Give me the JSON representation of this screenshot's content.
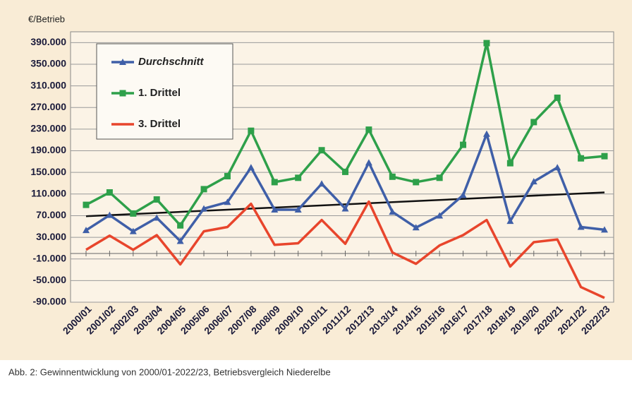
{
  "chart_data": {
    "type": "line",
    "y_label": "€/Betrieb",
    "caption": "Abb. 2: Gewinnentwicklung von 2000/01-2022/23, Betriebsvergleich Niederelbe",
    "categories": [
      "2000/01",
      "2001/02",
      "2002/03",
      "2003/04",
      "2004/05",
      "2005/06",
      "2006/07",
      "2007/08",
      "2008/09",
      "2009/10",
      "2010/11",
      "2011/12",
      "2012/13",
      "2013/14",
      "2014/15",
      "2015/16",
      "2016/17",
      "2017/18",
      "2018/19",
      "2019/20",
      "2020/21",
      "2021/22",
      "2022/23"
    ],
    "series": [
      {
        "name": "Durchschnitt",
        "color": "#3f5fa8",
        "marker": "triangle",
        "values": [
          43000,
          71000,
          41000,
          66000,
          23000,
          83000,
          95000,
          159000,
          81000,
          81000,
          129000,
          83000,
          168000,
          77000,
          48000,
          70000,
          108000,
          221000,
          60000,
          133000,
          159000,
          49000,
          44000
        ]
      },
      {
        "name": "1. Drittel",
        "color": "#2ea04a",
        "marker": "square",
        "values": [
          90000,
          113000,
          74000,
          100000,
          52000,
          119000,
          143000,
          227000,
          132000,
          140000,
          191000,
          151000,
          229000,
          142000,
          132000,
          140000,
          201000,
          389000,
          167000,
          243000,
          288000,
          176000,
          180000
        ]
      },
      {
        "name": "3. Drittel",
        "color": "#e8452c",
        "marker": "none",
        "values": [
          7000,
          33000,
          7000,
          34000,
          -20000,
          41000,
          49000,
          92000,
          16000,
          19000,
          62000,
          18000,
          96000,
          2000,
          -19000,
          15000,
          34000,
          62000,
          -24000,
          21000,
          26000,
          -62000,
          -82000
        ]
      }
    ],
    "trendline": {
      "start": 69000,
      "end": 113000,
      "color": "#111111"
    },
    "ylim": [
      -90000,
      410000
    ],
    "yticks": [
      {
        "value": 390000,
        "label": "390.000"
      },
      {
        "value": 350000,
        "label": "350.000"
      },
      {
        "value": 310000,
        "label": "310.000"
      },
      {
        "value": 270000,
        "label": "270.000"
      },
      {
        "value": 230000,
        "label": "230.000"
      },
      {
        "value": 190000,
        "label": "190.000"
      },
      {
        "value": 150000,
        "label": "150.000"
      },
      {
        "value": 110000,
        "label": "110.000"
      },
      {
        "value": 70000,
        "label": "70.000"
      },
      {
        "value": 30000,
        "label": "30.000"
      },
      {
        "value": -10000,
        "label": "-10.000"
      },
      {
        "value": -50000,
        "label": "-50.000"
      },
      {
        "value": -90000,
        "label": "-90.000"
      }
    ],
    "grid": true
  }
}
